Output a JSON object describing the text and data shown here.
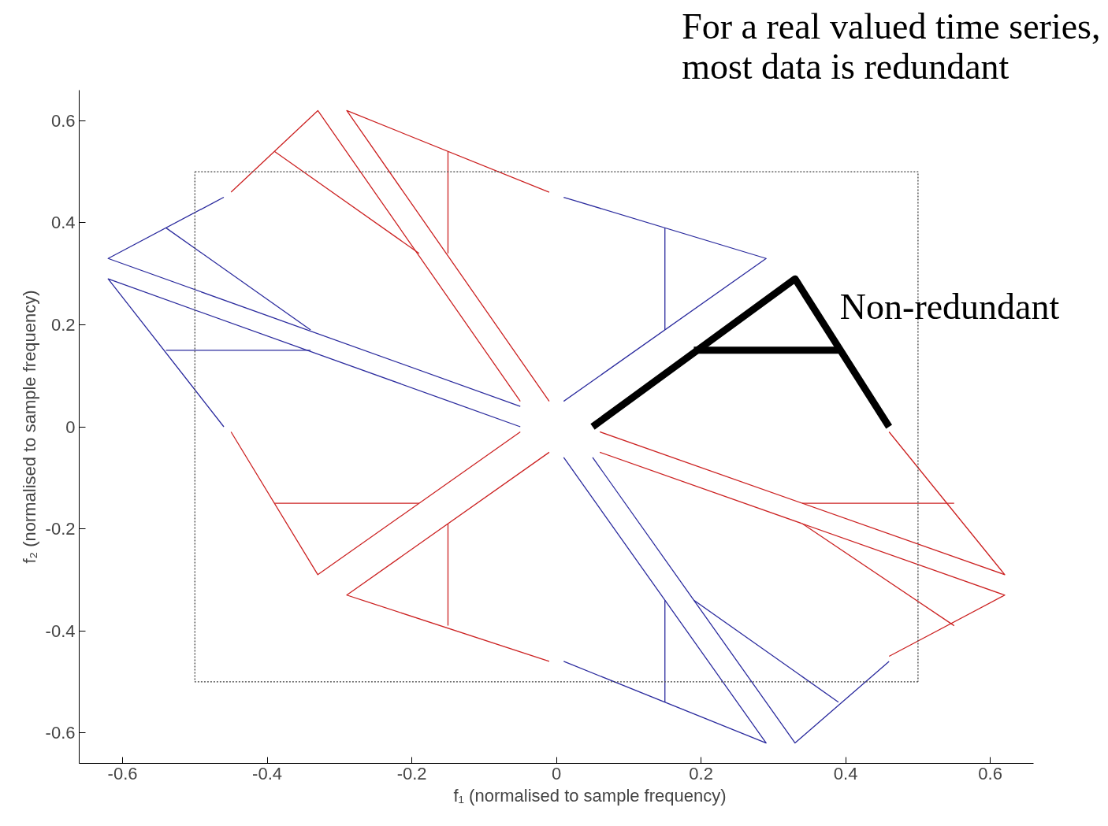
{
  "chart_data": {
    "type": "line",
    "title": "For a real valued time series,\nmost data is redundant",
    "xlabel": "f₁ (normalised to sample frequency)",
    "ylabel": "f₂ (normalised to sample frequency)",
    "xlim": [
      -0.66,
      0.66
    ],
    "ylim": [
      -0.66,
      0.66
    ],
    "xticks": [
      -0.6,
      -0.4,
      -0.2,
      0,
      0.2,
      0.4,
      0.6
    ],
    "yticks": [
      -0.6,
      -0.4,
      -0.2,
      0,
      0.2,
      0.4,
      0.6
    ],
    "grid": false,
    "annotations": [
      "Non-redundant"
    ],
    "series": [
      {
        "color": "#cc2222",
        "x": [
          -0.45,
          -0.33,
          -0.05
        ],
        "values": [
          0.46,
          0.62,
          0.05
        ]
      },
      {
        "color": "#cc2222",
        "x": [
          -0.39,
          -0.19
        ],
        "values": [
          0.54,
          0.34
        ]
      },
      {
        "color": "#cc2222",
        "x": [
          -0.01,
          -0.29,
          -0.01
        ],
        "values": [
          0.46,
          0.62,
          0.05
        ]
      },
      {
        "color": "#cc2222",
        "x": [
          -0.15,
          -0.15
        ],
        "values": [
          0.54,
          0.34
        ]
      },
      {
        "color": "#cc2222",
        "x": [
          -0.45,
          -0.33,
          -0.05
        ],
        "values": [
          -0.01,
          -0.29,
          -0.01
        ]
      },
      {
        "color": "#cc2222",
        "x": [
          -0.39,
          -0.19
        ],
        "values": [
          -0.15,
          -0.15
        ]
      },
      {
        "color": "#cc2222",
        "x": [
          -0.01,
          -0.29,
          -0.01
        ],
        "values": [
          -0.05,
          -0.33,
          -0.46
        ]
      },
      {
        "color": "#cc2222",
        "x": [
          -0.15,
          -0.15
        ],
        "values": [
          -0.19,
          -0.39
        ]
      },
      {
        "color": "#cc2222",
        "x": [
          0.06,
          0.62,
          0.46
        ],
        "values": [
          -0.01,
          -0.29,
          -0.01
        ]
      },
      {
        "color": "#cc2222",
        "x": [
          0.06,
          0.62,
          0.46
        ],
        "values": [
          -0.05,
          -0.33,
          -0.45
        ]
      },
      {
        "color": "#cc2222",
        "x": [
          0.34,
          0.55
        ],
        "values": [
          -0.15,
          -0.15
        ]
      },
      {
        "color": "#cc2222",
        "x": [
          0.34,
          0.55
        ],
        "values": [
          -0.19,
          -0.39
        ]
      },
      {
        "color": "#2b2b9e",
        "x": [
          -0.46,
          -0.62,
          -0.05
        ],
        "values": [
          0.45,
          0.33,
          0.04
        ]
      },
      {
        "color": "#2b2b9e",
        "x": [
          -0.54,
          -0.34
        ],
        "values": [
          0.39,
          0.19
        ]
      },
      {
        "color": "#2b2b9e",
        "x": [
          -0.46,
          -0.62,
          -0.05
        ],
        "values": [
          0.0,
          0.29,
          0.0
        ]
      },
      {
        "color": "#2b2b9e",
        "x": [
          -0.54,
          -0.34
        ],
        "values": [
          0.15,
          0.15
        ]
      },
      {
        "color": "#2b2b9e",
        "x": [
          0.01,
          0.29,
          0.01
        ],
        "values": [
          0.45,
          0.33,
          0.05
        ]
      },
      {
        "color": "#2b2b9e",
        "x": [
          0.15,
          0.15
        ],
        "values": [
          0.39,
          0.19
        ]
      },
      {
        "color": "#2b2b9e",
        "x": [
          0.01,
          0.29,
          0.01
        ],
        "values": [
          -0.06,
          -0.62,
          -0.46
        ]
      },
      {
        "color": "#2b2b9e",
        "x": [
          0.05,
          0.33,
          0.46
        ],
        "values": [
          -0.06,
          -0.62,
          -0.46
        ]
      },
      {
        "color": "#2b2b9e",
        "x": [
          0.19,
          0.39
        ],
        "values": [
          -0.34,
          -0.54
        ]
      },
      {
        "color": "#2b2b9e",
        "x": [
          0.15,
          0.15
        ],
        "values": [
          -0.34,
          -0.54
        ]
      },
      {
        "color": "#000000",
        "x": [
          0.05,
          0.33,
          0.46
        ],
        "values": [
          0.0,
          0.29,
          0.0
        ]
      },
      {
        "color": "#000000",
        "x": [
          0.19,
          0.39
        ],
        "values": [
          0.15,
          0.15
        ]
      },
      {
        "color": "#404040",
        "line_style": "dotted",
        "x": [
          -0.5,
          0.5,
          0.5
        ],
        "values": [
          0.5,
          0.5,
          -0.5
        ]
      },
      {
        "color": "#404040",
        "line_style": "dotted",
        "x": [
          0.5,
          -0.5,
          -0.5
        ],
        "values": [
          -0.5,
          -0.5,
          0.5
        ]
      }
    ]
  }
}
